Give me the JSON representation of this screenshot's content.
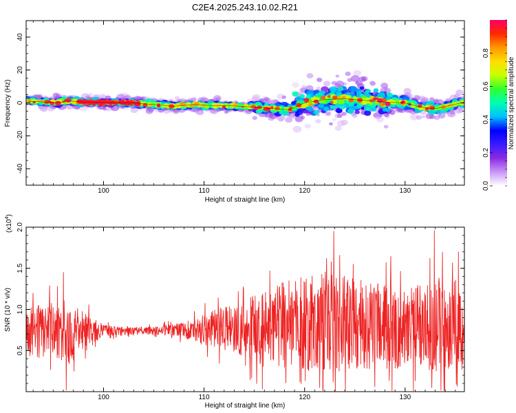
{
  "figure": {
    "title": "C2E4.2025.243.10.02.R21"
  },
  "chart_data": [
    {
      "type": "heatmap",
      "xlabel": "Height of straight line (km)",
      "ylabel": "Frequency (Hz)",
      "xlim": [
        92.3,
        135.9
      ],
      "ylim": [
        -50,
        50
      ],
      "xticks": [
        "100",
        "110",
        "120",
        "130"
      ],
      "yticks": [
        "-40",
        "-20",
        "0",
        "20",
        "40"
      ],
      "grid": false,
      "colorbar": {
        "label": "Normalized spectral amplitude",
        "range": [
          0,
          1
        ],
        "ticks": [
          "0.0",
          "0.2",
          "0.4",
          "0.6",
          "0.8"
        ],
        "colors": [
          "#ffffff",
          "#ca96f6",
          "#8a2be2",
          "#3a1bff",
          "#0000ff",
          "#00c0ff",
          "#00ffb0",
          "#30ff30",
          "#c8ff00",
          "#ffdd00",
          "#ff9900",
          "#ff2800",
          "#ff0066"
        ]
      },
      "ridge": [
        {
          "x": 92.5,
          "y": 1.0
        },
        {
          "x": 94.0,
          "y": 0.6
        },
        {
          "x": 95.5,
          "y": 0.2
        },
        {
          "x": 96.5,
          "y": 1.2
        },
        {
          "x": 98.0,
          "y": 0.5
        },
        {
          "x": 100.0,
          "y": 0.2
        },
        {
          "x": 103.0,
          "y": 0.0
        },
        {
          "x": 105.0,
          "y": -1.0
        },
        {
          "x": 107.0,
          "y": -2.0
        },
        {
          "x": 109.0,
          "y": -1.0
        },
        {
          "x": 110.5,
          "y": -1.5
        },
        {
          "x": 113.0,
          "y": -1.8
        },
        {
          "x": 115.0,
          "y": -2.5
        },
        {
          "x": 117.0,
          "y": -3.5
        },
        {
          "x": 118.5,
          "y": -4.0
        },
        {
          "x": 120.0,
          "y": 0.0
        },
        {
          "x": 122.0,
          "y": 2.0
        },
        {
          "x": 124.0,
          "y": 2.5
        },
        {
          "x": 126.0,
          "y": 1.5
        },
        {
          "x": 128.0,
          "y": 0.5
        },
        {
          "x": 130.0,
          "y": 0.0
        },
        {
          "x": 131.5,
          "y": -2.5
        },
        {
          "x": 133.0,
          "y": -3.5
        },
        {
          "x": 134.5,
          "y": -1.5
        },
        {
          "x": 135.9,
          "y": 0.5
        }
      ],
      "scatter_region": {
        "x": [
          119.0,
          128.5
        ],
        "y_spread": 11
      }
    },
    {
      "type": "line",
      "xlabel": "Height of straight line (km)",
      "ylabel": "SNR (10 * v/v)",
      "multiplier": "(x10",
      "multiplier_exp": "4",
      "multiplier_close": ")",
      "xlim": [
        92.3,
        135.9
      ],
      "ylim": [
        0,
        2.0
      ],
      "xticks": [
        "100",
        "110",
        "120",
        "130"
      ],
      "yticks": [
        "0.5",
        "1.0",
        "1.5",
        "2.0"
      ],
      "grid": false,
      "series": [
        {
          "color": "#ee2222",
          "envelope": [
            {
              "x": 92.3,
              "mean": 0.72,
              "amp": 0.32
            },
            {
              "x": 95.0,
              "mean": 0.74,
              "amp": 0.34
            },
            {
              "x": 96.5,
              "mean": 0.72,
              "amp": 0.42
            },
            {
              "x": 98.5,
              "mean": 0.74,
              "amp": 0.22
            },
            {
              "x": 100.0,
              "mean": 0.74,
              "amp": 0.07
            },
            {
              "x": 104.0,
              "mean": 0.74,
              "amp": 0.05
            },
            {
              "x": 107.0,
              "mean": 0.75,
              "amp": 0.07
            },
            {
              "x": 108.5,
              "mean": 0.75,
              "amp": 0.12
            },
            {
              "x": 111.0,
              "mean": 0.76,
              "amp": 0.24
            },
            {
              "x": 114.0,
              "mean": 0.76,
              "amp": 0.34
            },
            {
              "x": 116.0,
              "mean": 0.78,
              "amp": 0.48
            },
            {
              "x": 119.0,
              "mean": 0.82,
              "amp": 0.55
            },
            {
              "x": 122.0,
              "mean": 0.85,
              "amp": 0.62
            },
            {
              "x": 125.0,
              "mean": 0.82,
              "amp": 0.55
            },
            {
              "x": 128.0,
              "mean": 0.8,
              "amp": 0.52
            },
            {
              "x": 131.0,
              "mean": 0.78,
              "amp": 0.5
            },
            {
              "x": 133.0,
              "mean": 0.82,
              "amp": 0.58
            },
            {
              "x": 135.9,
              "mean": 0.8,
              "amp": 0.55
            }
          ],
          "peaks": [
            {
              "x": 96.0,
              "y": 1.45
            },
            {
              "x": 96.3,
              "y": 0.02
            },
            {
              "x": 122.9,
              "y": 1.95
            },
            {
              "x": 122.2,
              "y": 1.62
            },
            {
              "x": 132.9,
              "y": 1.96
            },
            {
              "x": 135.3,
              "y": 1.7
            },
            {
              "x": 115.8,
              "y": 0.03
            },
            {
              "x": 121.5,
              "y": 0.05
            },
            {
              "x": 127.0,
              "y": 0.06
            }
          ]
        }
      ]
    }
  ]
}
